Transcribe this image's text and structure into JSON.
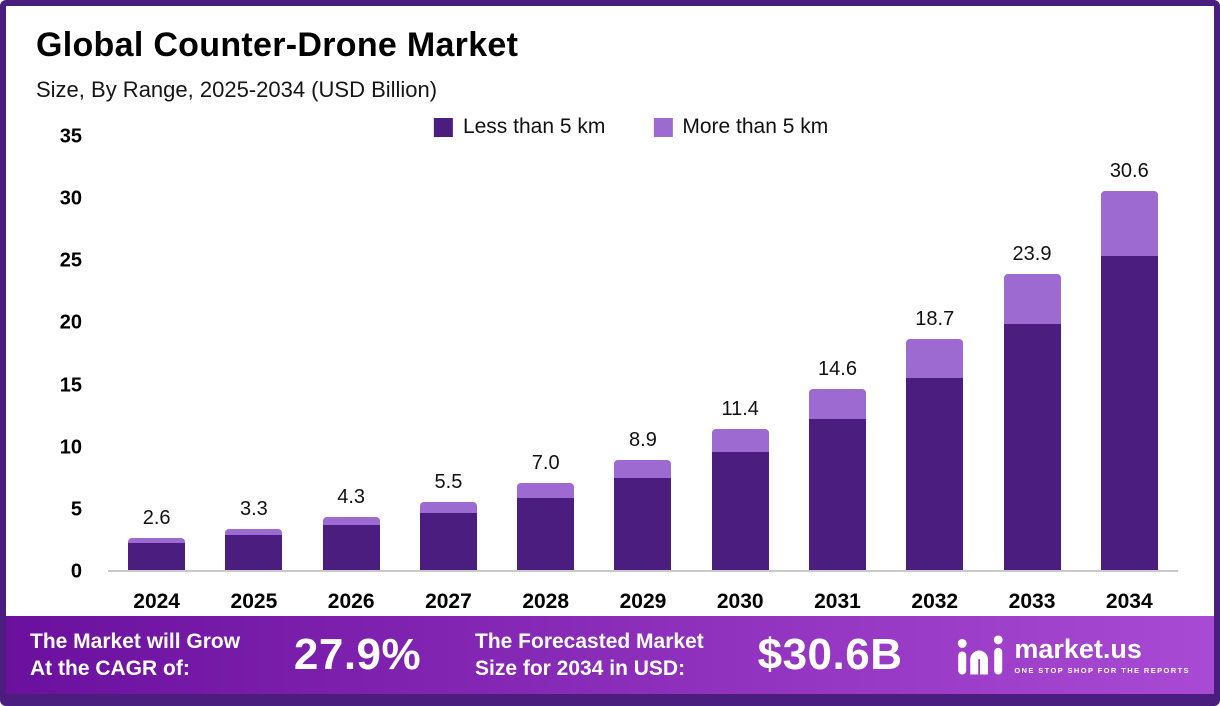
{
  "chart_data": {
    "type": "bar",
    "stacked": true,
    "title": "Global Counter-Drone Market",
    "subtitle": "Size, By Range, 2025-2034 (USD Billion)",
    "categories": [
      "2024",
      "2025",
      "2026",
      "2027",
      "2028",
      "2029",
      "2030",
      "2031",
      "2032",
      "2033",
      "2034"
    ],
    "series": [
      {
        "name": "Less than 5 km",
        "color": "#4a1d7e",
        "values": [
          2.2,
          2.8,
          3.6,
          4.6,
          5.8,
          7.4,
          9.5,
          12.2,
          15.5,
          19.9,
          25.4
        ]
      },
      {
        "name": "More than 5 km",
        "color": "#9c6ad0",
        "values": [
          0.4,
          0.5,
          0.7,
          0.9,
          1.2,
          1.5,
          1.9,
          2.4,
          3.2,
          4.0,
          5.2
        ]
      }
    ],
    "totals": [
      2.6,
      3.3,
      4.3,
      5.5,
      7.0,
      8.9,
      11.4,
      14.6,
      18.7,
      23.9,
      30.6
    ],
    "ylim": [
      0,
      35
    ],
    "yticks": [
      0,
      5,
      10,
      15,
      20,
      25,
      30,
      35
    ],
    "grid": false,
    "legend_position": "top"
  },
  "footer": {
    "cagr_label_line1": "The Market will Grow",
    "cagr_label_line2": "At the CAGR of:",
    "cagr_value": "27.9%",
    "forecast_label_line1": "The Forecasted Market",
    "forecast_label_line2": "Size for 2034 in USD:",
    "forecast_value": "$30.6B",
    "brand": "market.us",
    "brand_tagline": "ONE STOP SHOP FOR THE REPORTS"
  },
  "colors": {
    "border": "#4a1d7e",
    "bar_dark": "#4a1d7e",
    "bar_light": "#9c6ad0",
    "axis_line": "#c9c9c9",
    "footer_grad_start": "#6b0f9e",
    "footer_grad_end": "#a94ad4",
    "text": "#111111"
  }
}
